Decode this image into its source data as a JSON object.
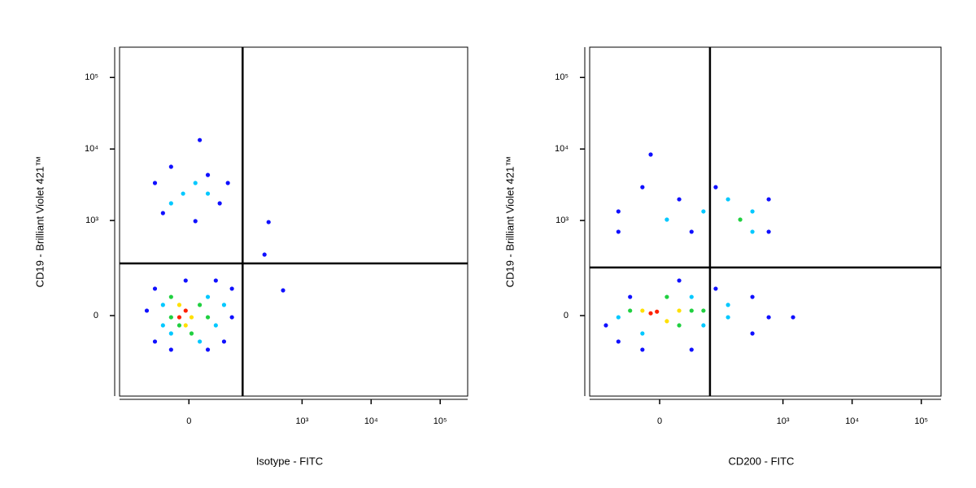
{
  "chart_data": [
    {
      "type": "scatter",
      "xlabel": "Isotype - FITC",
      "ylabel": "CD19 - Brilliant Violet 421™",
      "xlim": [
        -230,
        250000
      ],
      "ylim": [
        -623,
        265000
      ],
      "xscale": {
        "type": "biexponential",
        "linear_width": 46
      },
      "yscale": {
        "type": "biexponential",
        "linear_width": 94
      },
      "xticks": [
        0,
        {
          "value": 1000,
          "label": "10³"
        },
        {
          "value": 10000,
          "label": "10⁴"
        },
        {
          "value": 100000,
          "label": "10⁵"
        }
      ],
      "yticks": [
        0,
        {
          "value": 1000,
          "label": "10³"
        },
        {
          "value": 10000,
          "label": "10⁴"
        },
        {
          "value": 100000,
          "label": "10⁵"
        }
      ],
      "gates": {
        "x": 134,
        "y": 243
      },
      "series": [
        {
          "color": "#1010ff",
          "x": [
            -64,
            -45,
            -29,
            56,
            78,
            31,
            10,
            17,
            -88,
            -64,
            -29,
            31,
            91,
            91,
            67,
            -64,
            -5,
            47,
            326,
            530,
            284
          ],
          "y": [
            3350,
            1270,
            5650,
            1740,
            3350,
            4340,
            980,
            13350,
            15,
            -88,
            -125,
            -125,
            -5,
            92,
            -88,
            92,
            130,
            130,
            950,
            85,
            328
          ]
        },
        {
          "color": "#00c8ff",
          "x": [
            -9,
            -29,
            10,
            31,
            -45,
            47,
            31,
            -29,
            17,
            -45,
            67
          ],
          "y": [
            2380,
            1740,
            3350,
            2380,
            33,
            -30,
            60,
            -57,
            -88,
            -30,
            33
          ]
        },
        {
          "color": "#20d040",
          "x": [
            -29,
            17,
            4,
            31,
            -29,
            -15
          ],
          "y": [
            60,
            33,
            -57,
            -5,
            -5,
            -30
          ]
        },
        {
          "color": "#ffe000",
          "x": [
            -15,
            4,
            -5
          ],
          "y": [
            33,
            -5,
            -30
          ]
        },
        {
          "color": "#ff2000",
          "x": [
            -5,
            -15
          ],
          "y": [
            15,
            -5
          ]
        }
      ]
    },
    {
      "type": "scatter",
      "xlabel": "CD200 - FITC",
      "ylabel": "CD19 - Brilliant Violet 421™",
      "xlim": [
        -168,
        193000
      ],
      "ylim": [
        -623,
        265000
      ],
      "xscale": {
        "type": "biexponential",
        "linear_width": 33
      },
      "yscale": {
        "type": "biexponential",
        "linear_width": 94
      },
      "xticks": [
        0,
        {
          "value": 1000,
          "label": "10³"
        },
        {
          "value": 10000,
          "label": "10⁴"
        },
        {
          "value": 100000,
          "label": "10⁵"
        }
      ],
      "yticks": [
        0,
        {
          "value": 1000,
          "label": "10³"
        },
        {
          "value": 10000,
          "label": "10⁴"
        },
        {
          "value": 100000,
          "label": "10⁵"
        }
      ],
      "gates": {
        "x": 85,
        "y": 211
      },
      "series": [
        {
          "color": "#1010ff",
          "x": [
            -61,
            -20,
            23,
            42,
            104,
            622,
            622,
            -10,
            -61,
            -96,
            -61,
            -20,
            42,
            361,
            622,
            1400,
            361,
            104,
            23,
            -38
          ],
          "y": [
            1340,
            2930,
            1980,
            695,
            2930,
            1980,
            695,
            8370,
            695,
            -30,
            -88,
            -125,
            -125,
            -57,
            -5,
            -5,
            60,
            92,
            130,
            60
          ]
        },
        {
          "color": "#00c8ff",
          "x": [
            8,
            67,
            159,
            361,
            361,
            -61,
            -20,
            67,
            159,
            42,
            159
          ],
          "y": [
            1030,
            1340,
            1980,
            1340,
            695,
            -5,
            -57,
            -30,
            -5,
            60,
            33
          ]
        },
        {
          "color": "#20d040",
          "x": [
            240,
            -38,
            23,
            42,
            8,
            67
          ],
          "y": [
            1030,
            15,
            -30,
            15,
            60,
            15
          ]
        },
        {
          "color": "#ffe000",
          "x": [
            -20,
            23,
            8
          ],
          "y": [
            15,
            15,
            -17
          ]
        },
        {
          "color": "#ff2000",
          "x": [
            -3,
            -10
          ],
          "y": [
            12,
            7
          ]
        }
      ]
    }
  ]
}
